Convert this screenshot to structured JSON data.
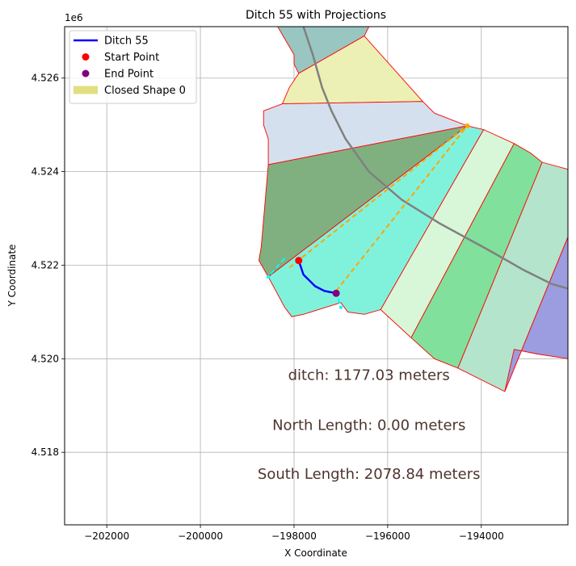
{
  "chart_data": {
    "type": "map-plot",
    "title": "Ditch 55 with Projections",
    "xlabel": "X Coordinate",
    "ylabel": "Y Coordinate",
    "y_offset_label": "1e6",
    "xlim": [
      -202900,
      -192150
    ],
    "ylim": [
      4516450,
      4527100
    ],
    "x_ticks": [
      {
        "value": -202000,
        "label": "−202000"
      },
      {
        "value": -200000,
        "label": "−200000"
      },
      {
        "value": -198000,
        "label": "−198000"
      },
      {
        "value": -196000,
        "label": "−196000"
      },
      {
        "value": -194000,
        "label": "−194000"
      }
    ],
    "y_ticks": [
      {
        "value": 4518000,
        "label": "4.518"
      },
      {
        "value": 4520000,
        "label": "4.520"
      },
      {
        "value": 4522000,
        "label": "4.522"
      },
      {
        "value": 4524000,
        "label": "4.524"
      },
      {
        "value": 4526000,
        "label": "4.526"
      }
    ],
    "grid": true,
    "legend_position": "top-left",
    "legend": [
      {
        "label": "Ditch 55",
        "kind": "line",
        "color": "#0000ff"
      },
      {
        "label": "Start Point",
        "kind": "dot",
        "color": "#ff0000"
      },
      {
        "label": "End Point",
        "kind": "dot",
        "color": "#800080"
      },
      {
        "label": "Closed Shape 0",
        "kind": "patch",
        "color": "#e0e080"
      }
    ],
    "polygons": [
      {
        "fill": "#99c6c0",
        "points": [
          [
            -198350,
            4527100
          ],
          [
            -196400,
            4527100
          ],
          [
            -196500,
            4526900
          ],
          [
            -197900,
            4526100
          ],
          [
            -198000,
            4526300
          ],
          [
            -198000,
            4526500
          ],
          [
            -198350,
            4527100
          ]
        ]
      },
      {
        "fill": "#ecf0b4",
        "points": [
          [
            -197900,
            4526100
          ],
          [
            -196500,
            4526900
          ],
          [
            -195250,
            4525500
          ],
          [
            -198250,
            4525450
          ],
          [
            -198100,
            4525800
          ],
          [
            -198000,
            4525950
          ],
          [
            -197900,
            4526100
          ]
        ]
      },
      {
        "fill": "#d5e0ee",
        "points": [
          [
            -198250,
            4525450
          ],
          [
            -195250,
            4525500
          ],
          [
            -195000,
            4525250
          ],
          [
            -194300,
            4524980
          ],
          [
            -198550,
            4524150
          ],
          [
            -198550,
            4524700
          ],
          [
            -198650,
            4525000
          ],
          [
            -198650,
            4525300
          ],
          [
            -198250,
            4525450
          ]
        ]
      },
      {
        "fill": "#80b080",
        "points": [
          [
            -198550,
            4524150
          ],
          [
            -194300,
            4524980
          ],
          [
            -198550,
            4521750
          ],
          [
            -198750,
            4522100
          ],
          [
            -198700,
            4522400
          ],
          [
            -198550,
            4524150
          ]
        ]
      },
      {
        "fill": "#80f2dc",
        "points": [
          [
            -198550,
            4521750
          ],
          [
            -194300,
            4524980
          ],
          [
            -193950,
            4524900
          ],
          [
            -196150,
            4521050
          ],
          [
            -196500,
            4520950
          ],
          [
            -196850,
            4521000
          ],
          [
            -197000,
            4521200
          ],
          [
            -197800,
            4520950
          ],
          [
            -198050,
            4520900
          ],
          [
            -198200,
            4521100
          ],
          [
            -198550,
            4521750
          ]
        ]
      },
      {
        "fill": "#d8f6d8",
        "points": [
          [
            -193950,
            4524900
          ],
          [
            -193300,
            4524600
          ],
          [
            -195500,
            4520450
          ],
          [
            -196150,
            4521050
          ],
          [
            -193950,
            4524900
          ]
        ]
      },
      {
        "fill": "#80e09c",
        "points": [
          [
            -193300,
            4524600
          ],
          [
            -192950,
            4524400
          ],
          [
            -192700,
            4524200
          ],
          [
            -194500,
            4519800
          ],
          [
            -195000,
            4520000
          ],
          [
            -195500,
            4520450
          ],
          [
            -193300,
            4524600
          ]
        ]
      },
      {
        "fill": "#b4e4cc",
        "points": [
          [
            -192700,
            4524200
          ],
          [
            -192150,
            4524050
          ],
          [
            -192150,
            4522600
          ],
          [
            -193500,
            4519300
          ],
          [
            -194500,
            4519800
          ],
          [
            -192700,
            4524200
          ]
        ]
      },
      {
        "fill": "#9c9ce0",
        "points": [
          [
            -192150,
            4522600
          ],
          [
            -192150,
            4520000
          ],
          [
            -192800,
            4520100
          ],
          [
            -193300,
            4520200
          ],
          [
            -193500,
            4519300
          ],
          [
            -192150,
            4522600
          ]
        ]
      }
    ],
    "projection_lines": [
      {
        "color": "#ffa500",
        "points": [
          [
            -198100,
            4521950
          ],
          [
            -194300,
            4524980
          ]
        ]
      },
      {
        "color": "#ffa500",
        "points": [
          [
            -197100,
            4521450
          ],
          [
            -194300,
            4524980
          ]
        ]
      },
      {
        "color": "#00ffff",
        "points": [
          [
            -198200,
            4522150
          ],
          [
            -198550,
            4521750
          ]
        ]
      },
      {
        "color": "#00ffff",
        "points": [
          [
            -197100,
            4521450
          ],
          [
            -197000,
            4521100
          ]
        ]
      }
    ],
    "projection_end_point": {
      "x": -194300,
      "y": 4524980,
      "color": "#ffa500"
    },
    "river": {
      "color": "#808080",
      "points": [
        [
          -197800,
          4527100
        ],
        [
          -197600,
          4526500
        ],
        [
          -197400,
          4525800
        ],
        [
          -197200,
          4525300
        ],
        [
          -196900,
          4524700
        ],
        [
          -196400,
          4524000
        ],
        [
          -195700,
          4523400
        ],
        [
          -194900,
          4522900
        ],
        [
          -193800,
          4522300
        ],
        [
          -193100,
          4521900
        ],
        [
          -192500,
          4521600
        ],
        [
          -192150,
          4521500
        ]
      ]
    },
    "ditch": {
      "name": "Ditch 55",
      "color": "#0000ff",
      "points": [
        [
          -197900,
          4522100
        ],
        [
          -197800,
          4521800
        ],
        [
          -197550,
          4521550
        ],
        [
          -197350,
          4521450
        ],
        [
          -197100,
          4521400
        ]
      ]
    },
    "start_point": {
      "x": -197900,
      "y": 4522100,
      "color": "#ff0000"
    },
    "end_point": {
      "x": -197100,
      "y": 4521400,
      "color": "#800080"
    },
    "annotations": [
      {
        "text": "ditch: 1177.03 meters",
        "x": -196400,
        "y": 4519550
      },
      {
        "text": "North Length: 0.00 meters",
        "x": -196400,
        "y": 4518480
      },
      {
        "text": "South Length: 2078.84 meters",
        "x": -196400,
        "y": 4517430
      }
    ]
  }
}
